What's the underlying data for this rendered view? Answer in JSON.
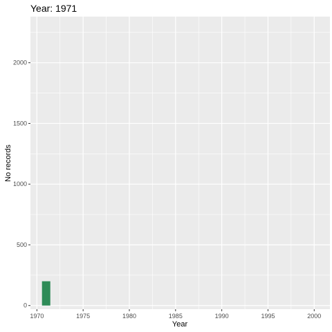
{
  "chart_data": {
    "type": "bar",
    "title": "Year: 1971",
    "xlabel": "Year",
    "ylabel": "No records",
    "xlim": [
      1969.3,
      2001.7
    ],
    "ylim": [
      -30,
      2380
    ],
    "x_ticks": [
      "1970",
      "1975",
      "1980",
      "1985",
      "1990",
      "1995",
      "2000"
    ],
    "y_ticks": [
      "0",
      "500",
      "1000",
      "1500",
      "2000"
    ],
    "bar_width": 0.9,
    "grid": true,
    "background_color": "#ebebeb",
    "bar_color": "#2e8b57",
    "x": [
      1971
    ],
    "values": [
      200
    ]
  }
}
